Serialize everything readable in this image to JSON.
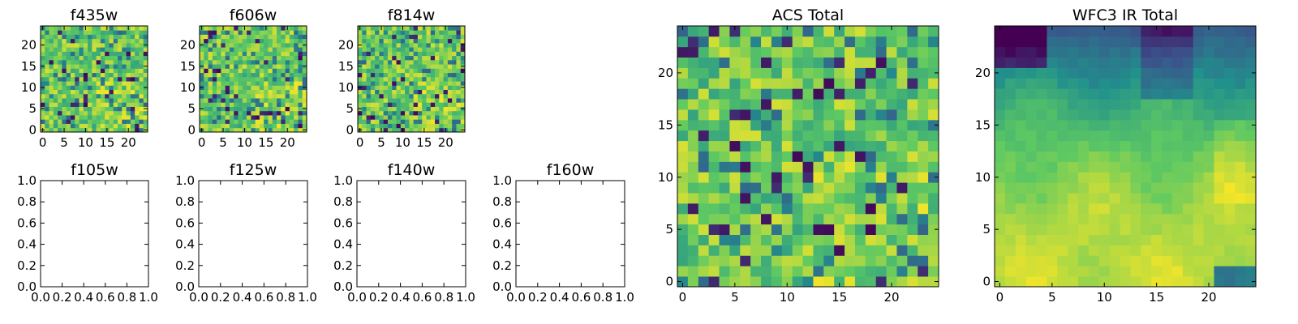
{
  "figure": {
    "background": "#ffffff",
    "colormap": "viridis",
    "colormap_stops": [
      "#440154",
      "#3b528b",
      "#21918c",
      "#5ec962",
      "#fde725"
    ]
  },
  "chart_data": [
    {
      "type": "heatmap",
      "title": "f435w",
      "grid": "25x25",
      "x_ticks": [
        "0",
        "5",
        "10",
        "15",
        "20"
      ],
      "y_ticks": [
        "0",
        "5",
        "10",
        "15",
        "20"
      ],
      "xlim": [
        -0.5,
        24.5
      ],
      "ylim": [
        -0.5,
        24.5
      ],
      "pattern": "noisy"
    },
    {
      "type": "heatmap",
      "title": "f606w",
      "grid": "25x25",
      "x_ticks": [
        "0",
        "5",
        "10",
        "15",
        "20"
      ],
      "y_ticks": [
        "0",
        "5",
        "10",
        "15",
        "20"
      ],
      "xlim": [
        -0.5,
        24.5
      ],
      "ylim": [
        -0.5,
        24.5
      ],
      "pattern": "noisy"
    },
    {
      "type": "heatmap",
      "title": "f814w",
      "grid": "25x25",
      "x_ticks": [
        "0",
        "5",
        "10",
        "15",
        "20"
      ],
      "y_ticks": [
        "0",
        "5",
        "10",
        "15",
        "20"
      ],
      "xlim": [
        -0.5,
        24.5
      ],
      "ylim": [
        -0.5,
        24.5
      ],
      "pattern": "noisy"
    },
    {
      "type": "heatmap",
      "title": "f105w",
      "x_ticks": [
        "0.0",
        "0.2",
        "0.4",
        "0.6",
        "0.8",
        "1.0"
      ],
      "y_ticks": [
        "0.0",
        "0.2",
        "0.4",
        "0.6",
        "0.8",
        "1.0"
      ],
      "xlim": [
        0,
        1
      ],
      "ylim": [
        0,
        1
      ],
      "pattern": "empty"
    },
    {
      "type": "heatmap",
      "title": "f125w",
      "x_ticks": [
        "0.0",
        "0.2",
        "0.4",
        "0.6",
        "0.8",
        "1.0"
      ],
      "y_ticks": [
        "0.0",
        "0.2",
        "0.4",
        "0.6",
        "0.8",
        "1.0"
      ],
      "xlim": [
        0,
        1
      ],
      "ylim": [
        0,
        1
      ],
      "pattern": "empty"
    },
    {
      "type": "heatmap",
      "title": "f140w",
      "x_ticks": [
        "0.0",
        "0.2",
        "0.4",
        "0.6",
        "0.8",
        "1.0"
      ],
      "y_ticks": [
        "0.0",
        "0.2",
        "0.4",
        "0.6",
        "0.8",
        "1.0"
      ],
      "xlim": [
        0,
        1
      ],
      "ylim": [
        0,
        1
      ],
      "pattern": "empty"
    },
    {
      "type": "heatmap",
      "title": "f160w",
      "x_ticks": [
        "0.0",
        "0.2",
        "0.4",
        "0.6",
        "0.8",
        "1.0"
      ],
      "y_ticks": [
        "0.0",
        "0.2",
        "0.4",
        "0.6",
        "0.8",
        "1.0"
      ],
      "xlim": [
        0,
        1
      ],
      "ylim": [
        0,
        1
      ],
      "pattern": "empty"
    },
    {
      "type": "heatmap",
      "title": "ACS Total",
      "grid": "25x25",
      "x_ticks": [
        "0",
        "5",
        "10",
        "15",
        "20"
      ],
      "y_ticks": [
        "0",
        "5",
        "10",
        "15",
        "20"
      ],
      "xlim": [
        -0.5,
        24.5
      ],
      "ylim": [
        -0.5,
        24.5
      ],
      "pattern": "noisy"
    },
    {
      "type": "heatmap",
      "title": "WFC3 IR Total",
      "grid": "25x25",
      "x_ticks": [
        "0",
        "5",
        "10",
        "15",
        "20"
      ],
      "y_ticks": [
        "0",
        "5",
        "10",
        "15",
        "20"
      ],
      "xlim": [
        -0.5,
        24.5
      ],
      "ylim": [
        -0.5,
        24.5
      ],
      "pattern": "smooth"
    }
  ]
}
